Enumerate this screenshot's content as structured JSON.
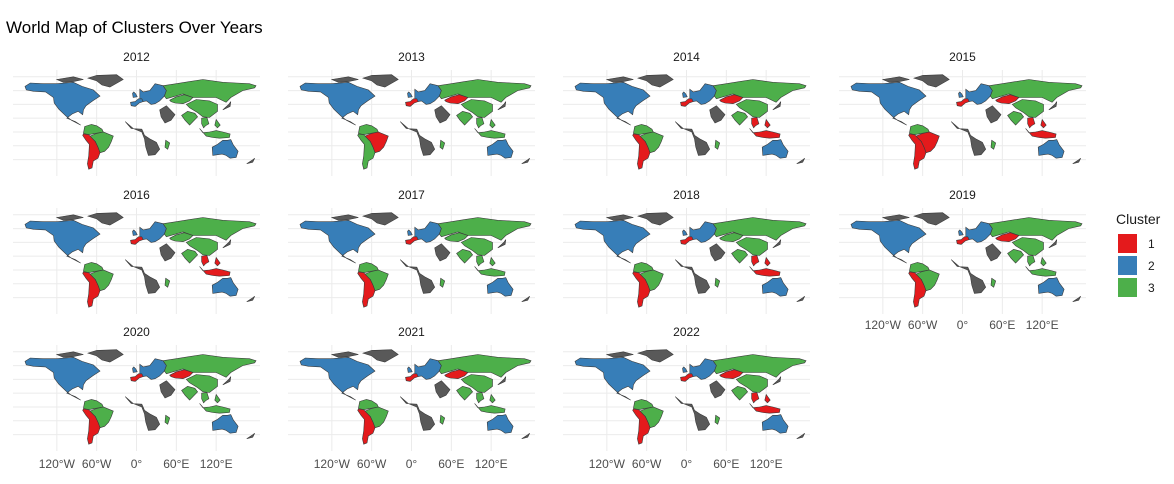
{
  "title": "World Map of Clusters Over Years",
  "colors": {
    "1": "#e41a1c",
    "2": "#377eb8",
    "3": "#4daf4a",
    "none": "#595959",
    "border": "#3a3a3a",
    "grid": "#ebebeb"
  },
  "legend": {
    "title": "Cluster",
    "items": [
      {
        "label": "1",
        "color": "#e41a1c"
      },
      {
        "label": "2",
        "color": "#377eb8"
      },
      {
        "label": "3",
        "color": "#4daf4a"
      }
    ]
  },
  "x_tick_labels": [
    "120°W",
    "60°W",
    "0°",
    "60°E",
    "120°E"
  ],
  "x_tick_values": [
    -120,
    -60,
    0,
    60,
    120
  ],
  "panels": [
    {
      "year": "2012",
      "regions": {
        "north_america": "2",
        "south_america_north": "3",
        "brazil": "3",
        "argentina_chile": "1",
        "europe": "2",
        "west_europe": "2",
        "russia": "3",
        "kazakhstan": "3",
        "africa_bits": "3",
        "india": "3",
        "southeast_asia": "3",
        "australia": "2"
      }
    },
    {
      "year": "2013",
      "regions": {
        "north_america": "2",
        "south_america_north": "3",
        "brazil": "1",
        "argentina_chile": "3",
        "europe": "2",
        "west_europe": "1",
        "russia": "3",
        "kazakhstan": "1",
        "africa_bits": "3",
        "india": "3",
        "southeast_asia": "3",
        "australia": "2"
      }
    },
    {
      "year": "2014",
      "regions": {
        "north_america": "2",
        "south_america_north": "3",
        "brazil": "3",
        "argentina_chile": "1",
        "europe": "2",
        "west_europe": "1",
        "russia": "3",
        "kazakhstan": "1",
        "africa_bits": "3",
        "india": "3",
        "southeast_asia": "1",
        "australia": "2"
      }
    },
    {
      "year": "2015",
      "regions": {
        "north_america": "2",
        "south_america_north": "3",
        "brazil": "1",
        "argentina_chile": "1",
        "europe": "2",
        "west_europe": "1",
        "russia": "3",
        "kazakhstan": "1",
        "africa_bits": "3",
        "india": "3",
        "southeast_asia": "1",
        "australia": "2"
      }
    },
    {
      "year": "2016",
      "regions": {
        "north_america": "2",
        "south_america_north": "3",
        "brazil": "3",
        "argentina_chile": "1",
        "europe": "2",
        "west_europe": "1",
        "russia": "3",
        "kazakhstan": "3",
        "africa_bits": "3",
        "india": "3",
        "southeast_asia": "1",
        "australia": "2"
      }
    },
    {
      "year": "2017",
      "regions": {
        "north_america": "2",
        "south_america_north": "3",
        "brazil": "3",
        "argentina_chile": "1",
        "europe": "2",
        "west_europe": "1",
        "russia": "3",
        "kazakhstan": "3",
        "africa_bits": "3",
        "india": "3",
        "southeast_asia": "3",
        "australia": "2"
      }
    },
    {
      "year": "2018",
      "regions": {
        "north_america": "2",
        "south_america_north": "3",
        "brazil": "3",
        "argentina_chile": "1",
        "europe": "2",
        "west_europe": "1",
        "russia": "3",
        "kazakhstan": "3",
        "africa_bits": "3",
        "india": "3",
        "southeast_asia": "1",
        "australia": "2"
      }
    },
    {
      "year": "2019",
      "regions": {
        "north_america": "2",
        "south_america_north": "3",
        "brazil": "3",
        "argentina_chile": "1",
        "europe": "2",
        "west_europe": "1",
        "russia": "3",
        "kazakhstan": "1",
        "africa_bits": "3",
        "india": "3",
        "southeast_asia": "3",
        "australia": "2"
      }
    },
    {
      "year": "2020",
      "regions": {
        "north_america": "2",
        "south_america_north": "3",
        "brazil": "3",
        "argentina_chile": "1",
        "europe": "2",
        "west_europe": "1",
        "russia": "3",
        "kazakhstan": "1",
        "africa_bits": "3",
        "india": "3",
        "southeast_asia": "3",
        "australia": "2"
      }
    },
    {
      "year": "2021",
      "regions": {
        "north_america": "2",
        "south_america_north": "3",
        "brazil": "3",
        "argentina_chile": "1",
        "europe": "2",
        "west_europe": "1",
        "russia": "3",
        "kazakhstan": "1",
        "africa_bits": "3",
        "india": "3",
        "southeast_asia": "3",
        "australia": "2"
      }
    },
    {
      "year": "2022",
      "regions": {
        "north_america": "2",
        "south_america_north": "3",
        "brazil": "3",
        "argentina_chile": "1",
        "europe": "2",
        "west_europe": "1",
        "russia": "3",
        "kazakhstan": "1",
        "africa_bits": "3",
        "india": "3",
        "southeast_asia": "1",
        "australia": "2"
      }
    }
  ]
}
